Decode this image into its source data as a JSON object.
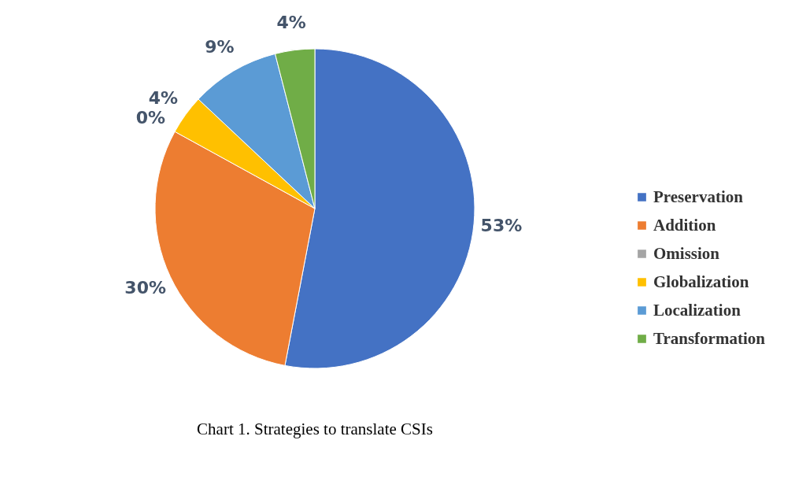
{
  "chart_data": {
    "type": "pie",
    "title": "Chart 1. Strategies to translate CSIs",
    "categories": [
      "Preservation",
      "Addition",
      "Omission",
      "Globalization",
      "Localization",
      "Transformation"
    ],
    "values": [
      53,
      30,
      0,
      4,
      9,
      4
    ],
    "colors": [
      "#4472c4",
      "#ed7d31",
      "#a5a5a5",
      "#ffc000",
      "#5b9bd5",
      "#70ad47"
    ],
    "value_labels": [
      "53%",
      "30%",
      "0%",
      "4%",
      "9%",
      "4%"
    ],
    "legend": "right"
  }
}
